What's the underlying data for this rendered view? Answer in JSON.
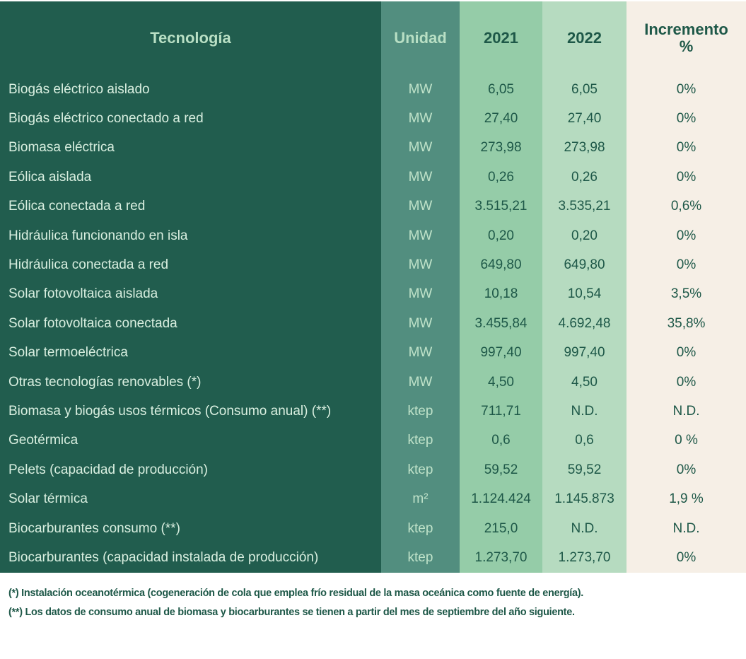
{
  "headers": [
    "Tecnología",
    "Unidad",
    "2021",
    "2022",
    "Incremento\n%"
  ],
  "rows": [
    [
      "Biogás eléctrico aislado",
      "MW",
      "6,05",
      "6,05",
      "0%"
    ],
    [
      "Biogás eléctrico conectado a red",
      "MW",
      "27,40",
      "27,40",
      "0%"
    ],
    [
      "Biomasa eléctrica",
      "MW",
      "273,98",
      "273,98",
      "0%"
    ],
    [
      "Eólica aislada",
      "MW",
      "0,26",
      "0,26",
      "0%"
    ],
    [
      "Eólica conectada a red",
      "MW",
      "3.515,21",
      "3.535,21",
      "0,6%"
    ],
    [
      "Hidráulica funcionando en isla",
      "MW",
      "0,20",
      "0,20",
      "0%"
    ],
    [
      "Hidráulica conectada a red",
      "MW",
      "649,80",
      "649,80",
      "0%"
    ],
    [
      "Solar fotovoltaica aislada",
      "MW",
      "10,18",
      "10,54",
      "3,5%"
    ],
    [
      "Solar fotovoltaica conectada",
      "MW",
      "3.455,84",
      "4.692,48",
      "35,8%"
    ],
    [
      "Solar termoeléctrica",
      "MW",
      "997,40",
      "997,40",
      "0%"
    ],
    [
      "Otras tecnologías renovables (*)",
      "MW",
      "4,50",
      "4,50",
      "0%"
    ],
    [
      "Biomasa y biogás usos térmicos (Consumo anual) (**)",
      "ktep",
      "711,71",
      "N.D.",
      "N.D."
    ],
    [
      "Geotérmica",
      "ktep",
      "0,6",
      "0,6",
      "0 %"
    ],
    [
      "Pelets (capacidad de producción)",
      "ktep",
      "59,52",
      "59,52",
      "0%"
    ],
    [
      "Solar térmica",
      "m²",
      "1.124.424",
      "1.145.873",
      "1,9 %"
    ],
    [
      "Biocarburantes consumo (**)",
      "ktep",
      "215,0",
      "N.D.",
      "N.D."
    ],
    [
      "Biocarburantes (capacidad instalada de producción)",
      "ktep",
      "1.273,70",
      "1.273,70",
      "0%"
    ]
  ],
  "notes": [
    "(*) Instalación oceanotérmica (cogeneración de cola que emplea frío residual de la masa oceánica como fuente de energía).",
    "(**) Los datos de consumo anual de biomasa y biocarburantes se tienen a partir del mes de septiembre del año siguiente."
  ]
}
